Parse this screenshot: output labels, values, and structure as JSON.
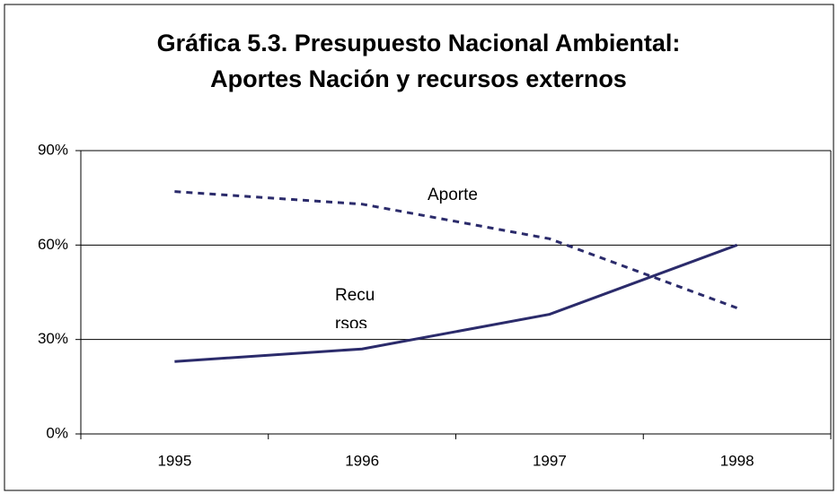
{
  "chart_data": {
    "type": "line",
    "title": [
      "Gráfica 5.3. Presupuesto Nacional Ambiental:",
      "Aportes Nación y recursos externos"
    ],
    "categories": [
      "1995",
      "1996",
      "1997",
      "1998"
    ],
    "series": [
      {
        "color": "#2b2b6b",
        "dashed": true,
        "values": [
          77,
          73,
          62,
          40
        ]
      },
      {
        "color": "#2b2b6b",
        "dashed": false,
        "values": [
          23,
          27,
          38,
          60
        ]
      }
    ],
    "ylim": [
      0,
      90
    ],
    "yticks": [
      {
        "value": 0,
        "label": "0%"
      },
      {
        "value": 30,
        "label": "30%"
      },
      {
        "value": 60,
        "label": "60%"
      },
      {
        "value": 90,
        "label": "90%"
      }
    ],
    "grid": true,
    "annotations": [
      "Aporte",
      "Recu",
      "rsos"
    ]
  }
}
